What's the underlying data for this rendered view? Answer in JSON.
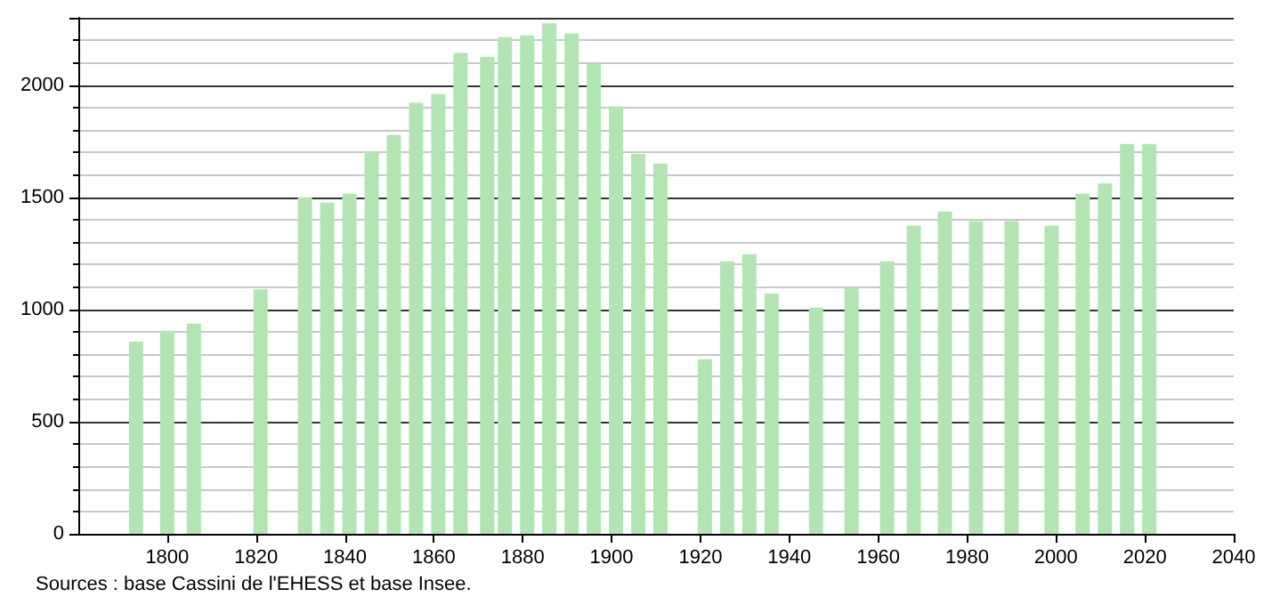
{
  "chart_data": {
    "type": "bar",
    "x": [
      1793,
      1800,
      1806,
      1821,
      1831,
      1836,
      1841,
      1846,
      1851,
      1856,
      1861,
      1866,
      1872,
      1876,
      1881,
      1886,
      1891,
      1896,
      1901,
      1906,
      1911,
      1921,
      1926,
      1931,
      1936,
      1946,
      1954,
      1962,
      1968,
      1975,
      1982,
      1990,
      1999,
      2006,
      2011,
      2016,
      2021
    ],
    "values": [
      857,
      905,
      937,
      1090,
      1500,
      1476,
      1516,
      1704,
      1778,
      1921,
      1960,
      2143,
      2127,
      2214,
      2222,
      2275,
      2230,
      2095,
      1905,
      1693,
      1651,
      778,
      1214,
      1246,
      1071,
      1008,
      1095,
      1214,
      1373,
      1437,
      1394,
      1394,
      1373,
      1516,
      1561,
      1738,
      1738
    ],
    "color": "#b3e5b3",
    "xlim": [
      1780,
      2040
    ],
    "xticks": [
      1800,
      1820,
      1840,
      1860,
      1880,
      1900,
      1920,
      1940,
      1960,
      1980,
      2000,
      2020,
      2040
    ],
    "ylim": [
      0,
      2300
    ],
    "yticks": [
      0,
      500,
      1000,
      1500,
      2000
    ],
    "grid": "y",
    "annotations": [
      "Sources : base Cassini de l'EHESS et base Insee."
    ]
  }
}
